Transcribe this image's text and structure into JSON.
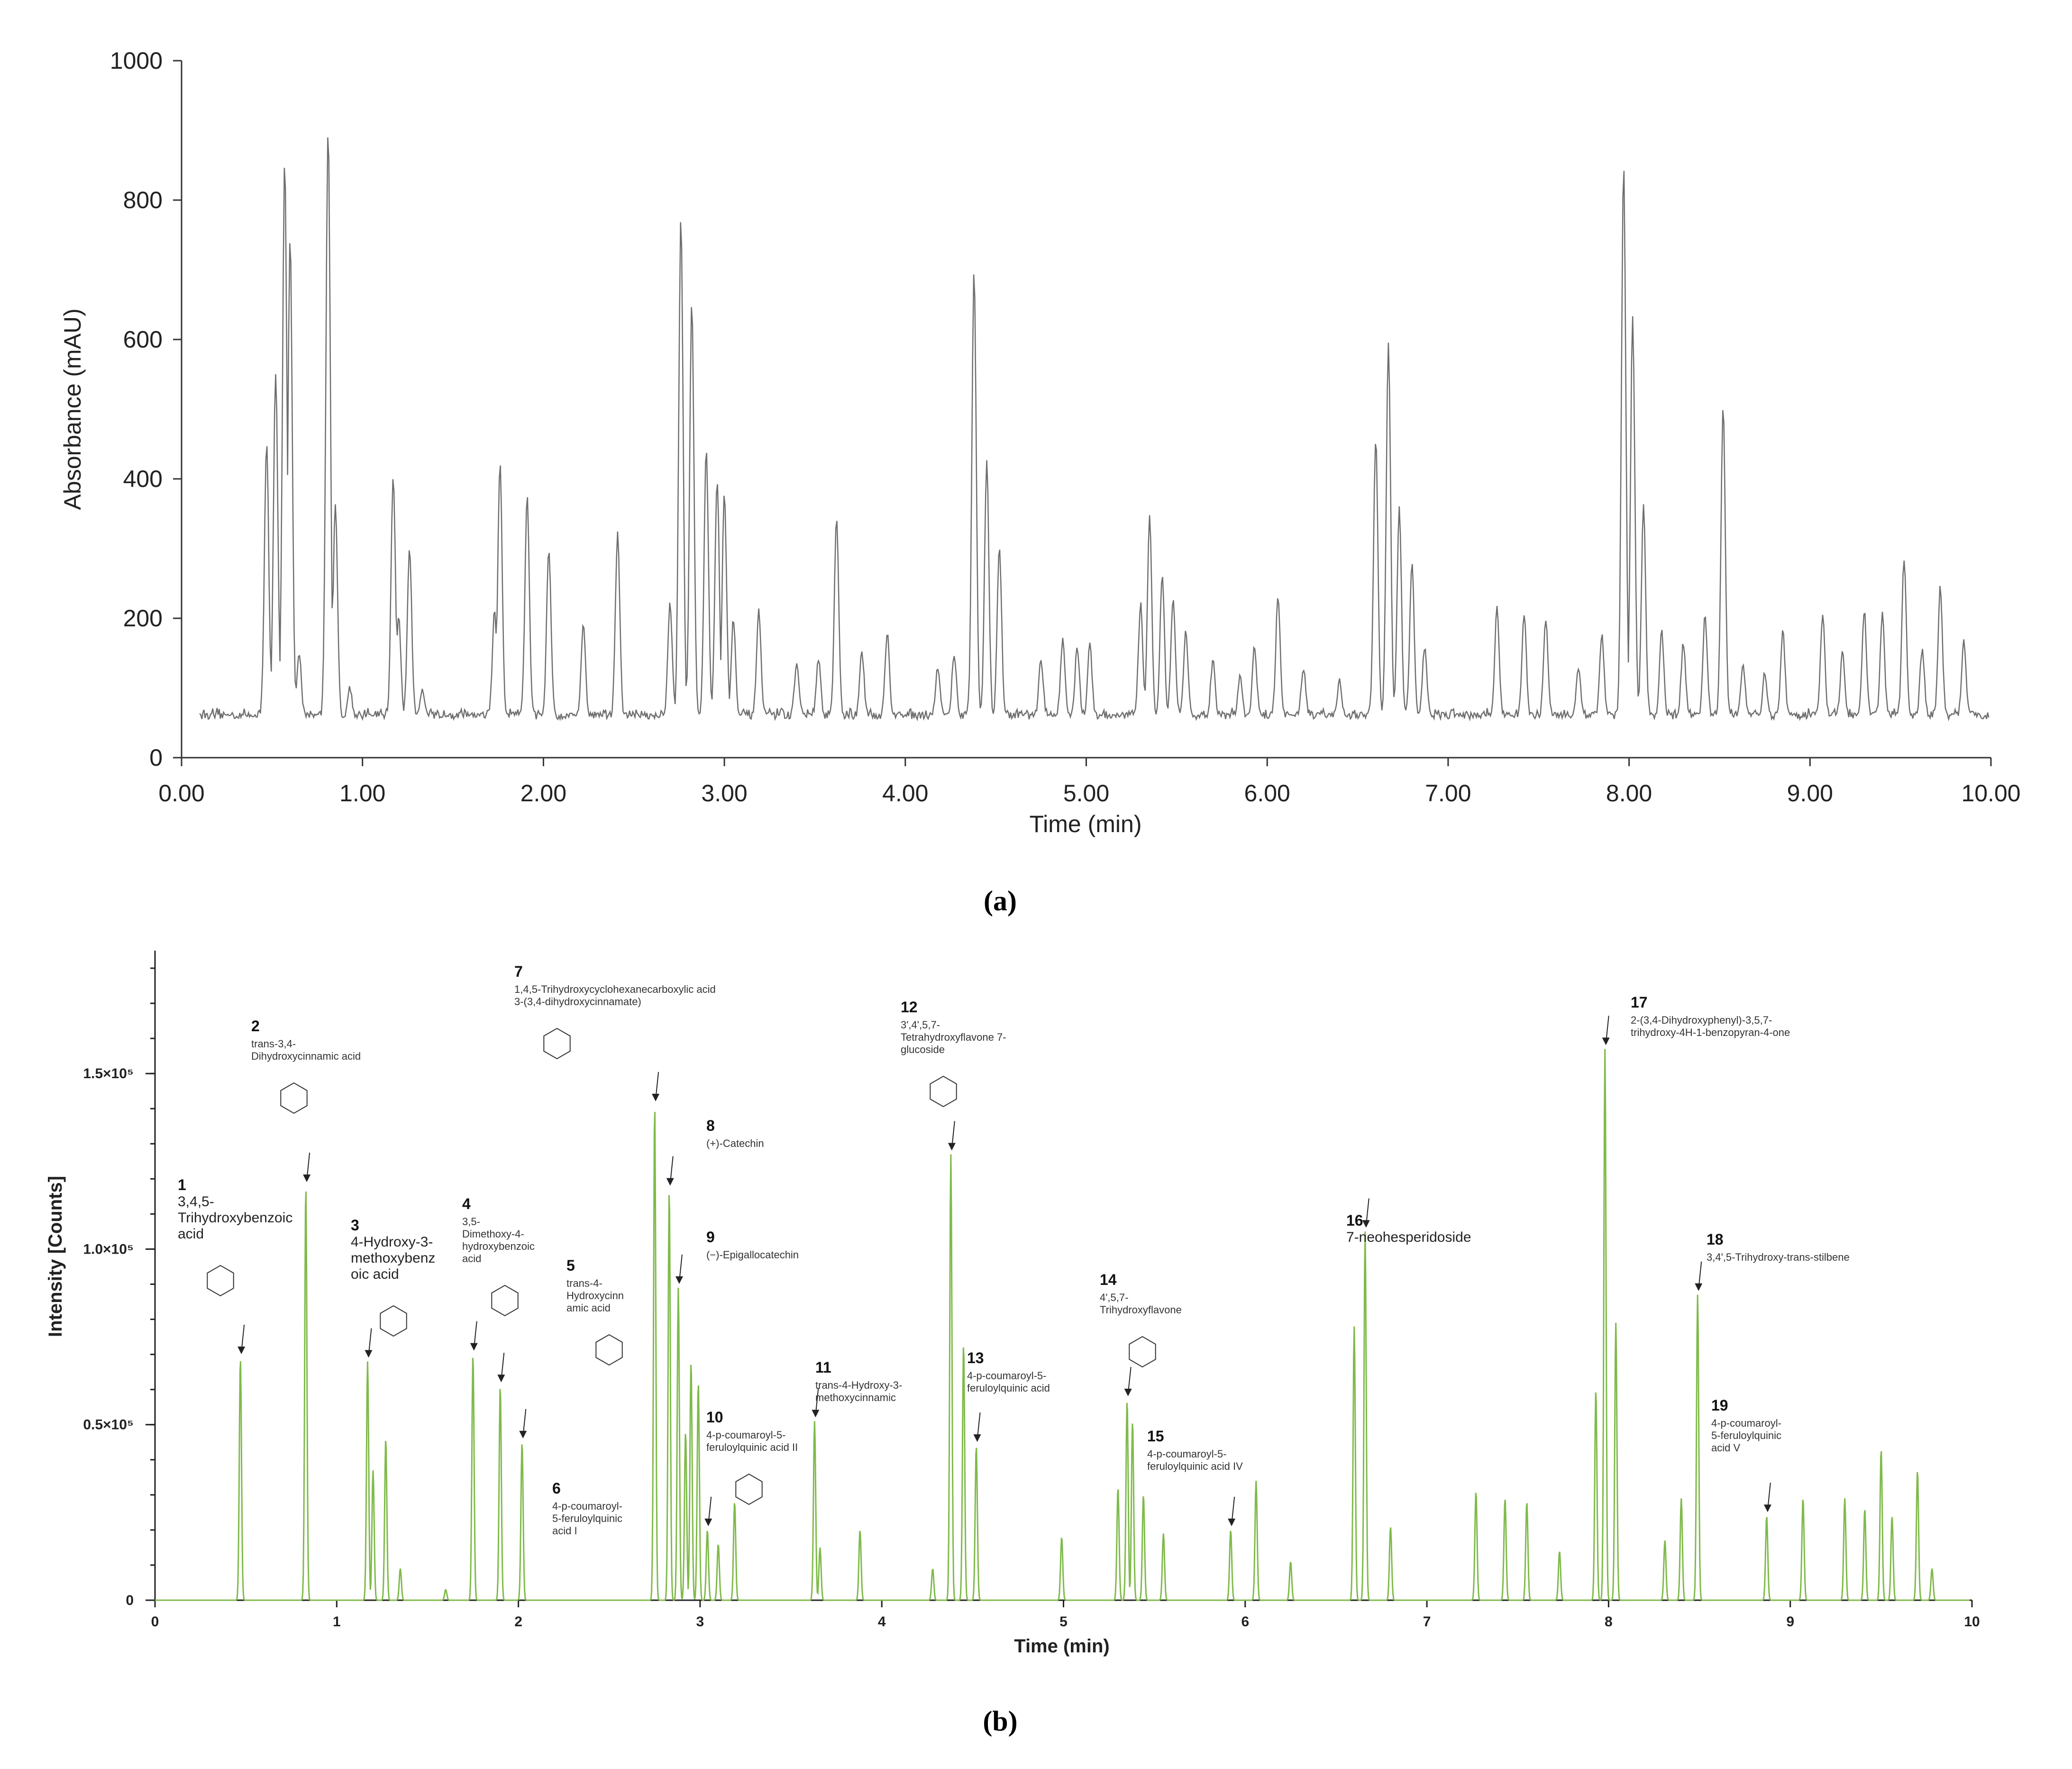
{
  "chart_data": [
    {
      "panel": "(a)",
      "type": "line",
      "xlabel": "Time (min)",
      "ylabel": "Absorbance (mAU)",
      "xlim": [
        0,
        10
      ],
      "ylim": [
        0,
        1000
      ],
      "xticks": [
        "0.00",
        "1.00",
        "2.00",
        "3.00",
        "4.00",
        "5.00",
        "6.00",
        "7.00",
        "8.00",
        "9.00",
        "10.00"
      ],
      "yticks": [
        "0",
        "200",
        "400",
        "600",
        "800",
        "1000"
      ],
      "line_color": "#6e6e6e",
      "baseline": 60,
      "peaks": [
        {
          "t": 0.47,
          "y": 450
        },
        {
          "t": 0.52,
          "y": 550
        },
        {
          "t": 0.57,
          "y": 855
        },
        {
          "t": 0.6,
          "y": 750
        },
        {
          "t": 0.65,
          "y": 150
        },
        {
          "t": 0.81,
          "y": 905
        },
        {
          "t": 0.85,
          "y": 360
        },
        {
          "t": 0.93,
          "y": 100
        },
        {
          "t": 1.17,
          "y": 405
        },
        {
          "t": 1.2,
          "y": 200
        },
        {
          "t": 1.26,
          "y": 300
        },
        {
          "t": 1.33,
          "y": 100
        },
        {
          "t": 1.73,
          "y": 210
        },
        {
          "t": 1.76,
          "y": 420
        },
        {
          "t": 1.91,
          "y": 375
        },
        {
          "t": 2.03,
          "y": 300
        },
        {
          "t": 2.22,
          "y": 190
        },
        {
          "t": 2.41,
          "y": 320
        },
        {
          "t": 2.7,
          "y": 220
        },
        {
          "t": 2.76,
          "y": 775
        },
        {
          "t": 2.82,
          "y": 650
        },
        {
          "t": 2.9,
          "y": 440
        },
        {
          "t": 2.96,
          "y": 400
        },
        {
          "t": 3.0,
          "y": 380
        },
        {
          "t": 3.05,
          "y": 200
        },
        {
          "t": 3.19,
          "y": 210
        },
        {
          "t": 3.4,
          "y": 140
        },
        {
          "t": 3.52,
          "y": 140
        },
        {
          "t": 3.62,
          "y": 340
        },
        {
          "t": 3.76,
          "y": 150
        },
        {
          "t": 3.9,
          "y": 180
        },
        {
          "t": 4.18,
          "y": 130
        },
        {
          "t": 4.27,
          "y": 150
        },
        {
          "t": 4.38,
          "y": 700
        },
        {
          "t": 4.45,
          "y": 425
        },
        {
          "t": 4.52,
          "y": 305
        },
        {
          "t": 4.75,
          "y": 140
        },
        {
          "t": 4.87,
          "y": 170
        },
        {
          "t": 4.95,
          "y": 160
        },
        {
          "t": 5.02,
          "y": 160
        },
        {
          "t": 5.3,
          "y": 220
        },
        {
          "t": 5.35,
          "y": 345
        },
        {
          "t": 5.42,
          "y": 260
        },
        {
          "t": 5.48,
          "y": 225
        },
        {
          "t": 5.55,
          "y": 180
        },
        {
          "t": 5.7,
          "y": 140
        },
        {
          "t": 5.85,
          "y": 115
        },
        {
          "t": 5.93,
          "y": 160
        },
        {
          "t": 6.06,
          "y": 235
        },
        {
          "t": 6.2,
          "y": 130
        },
        {
          "t": 6.4,
          "y": 110
        },
        {
          "t": 6.6,
          "y": 460
        },
        {
          "t": 6.67,
          "y": 595
        },
        {
          "t": 6.73,
          "y": 360
        },
        {
          "t": 6.8,
          "y": 280
        },
        {
          "t": 6.87,
          "y": 160
        },
        {
          "t": 7.27,
          "y": 215
        },
        {
          "t": 7.42,
          "y": 205
        },
        {
          "t": 7.54,
          "y": 200
        },
        {
          "t": 7.72,
          "y": 130
        },
        {
          "t": 7.85,
          "y": 175
        },
        {
          "t": 7.97,
          "y": 850
        },
        {
          "t": 8.02,
          "y": 630
        },
        {
          "t": 8.08,
          "y": 360
        },
        {
          "t": 8.18,
          "y": 180
        },
        {
          "t": 8.3,
          "y": 165
        },
        {
          "t": 8.42,
          "y": 205
        },
        {
          "t": 8.52,
          "y": 500
        },
        {
          "t": 8.63,
          "y": 130
        },
        {
          "t": 8.75,
          "y": 120
        },
        {
          "t": 8.85,
          "y": 180
        },
        {
          "t": 9.07,
          "y": 205
        },
        {
          "t": 9.18,
          "y": 150
        },
        {
          "t": 9.3,
          "y": 210
        },
        {
          "t": 9.4,
          "y": 205
        },
        {
          "t": 9.52,
          "y": 285
        },
        {
          "t": 9.62,
          "y": 155
        },
        {
          "t": 9.72,
          "y": 245
        },
        {
          "t": 9.85,
          "y": 165
        }
      ]
    },
    {
      "panel": "(b)",
      "type": "line",
      "xlabel": "Time (min)",
      "ylabel": "Intensity  [Counts]",
      "xlim": [
        0,
        10
      ],
      "ylim": [
        0,
        185000
      ],
      "xticks": [
        "0",
        "1",
        "2",
        "3",
        "4",
        "5",
        "6",
        "7",
        "8",
        "9",
        "10"
      ],
      "yticks": [
        {
          "value": 0,
          "label": "0"
        },
        {
          "value": 50000,
          "label": "0.5×10⁵"
        },
        {
          "value": 100000,
          "label": "1.0×10⁵"
        },
        {
          "value": 150000,
          "label": "1.5×10⁵"
        }
      ],
      "line_color": "#7fba4a",
      "peaks": [
        {
          "t": 0.47,
          "y": 69000
        },
        {
          "t": 0.83,
          "y": 118000
        },
        {
          "t": 1.17,
          "y": 68000
        },
        {
          "t": 1.2,
          "y": 37000
        },
        {
          "t": 1.27,
          "y": 46000
        },
        {
          "t": 1.35,
          "y": 9000
        },
        {
          "t": 1.6,
          "y": 3000
        },
        {
          "t": 1.75,
          "y": 70000
        },
        {
          "t": 1.9,
          "y": 61000
        },
        {
          "t": 2.02,
          "y": 45000
        },
        {
          "t": 2.75,
          "y": 141000
        },
        {
          "t": 2.83,
          "y": 117000
        },
        {
          "t": 2.88,
          "y": 89000
        },
        {
          "t": 2.92,
          "y": 48000
        },
        {
          "t": 2.95,
          "y": 68000
        },
        {
          "t": 2.99,
          "y": 62000
        },
        {
          "t": 3.04,
          "y": 20000
        },
        {
          "t": 3.1,
          "y": 16000
        },
        {
          "t": 3.19,
          "y": 28000
        },
        {
          "t": 3.63,
          "y": 51000
        },
        {
          "t": 3.66,
          "y": 15000
        },
        {
          "t": 3.88,
          "y": 20000
        },
        {
          "t": 4.28,
          "y": 9000
        },
        {
          "t": 4.38,
          "y": 127000
        },
        {
          "t": 4.45,
          "y": 73000
        },
        {
          "t": 4.52,
          "y": 44000
        },
        {
          "t": 4.99,
          "y": 18000
        },
        {
          "t": 5.3,
          "y": 32000
        },
        {
          "t": 5.35,
          "y": 57000
        },
        {
          "t": 5.38,
          "y": 51000
        },
        {
          "t": 5.44,
          "y": 30000
        },
        {
          "t": 5.55,
          "y": 19000
        },
        {
          "t": 5.92,
          "y": 20000
        },
        {
          "t": 6.06,
          "y": 34000
        },
        {
          "t": 6.25,
          "y": 11000
        },
        {
          "t": 6.6,
          "y": 78000
        },
        {
          "t": 6.66,
          "y": 105000
        },
        {
          "t": 6.8,
          "y": 21000
        },
        {
          "t": 7.27,
          "y": 31000
        },
        {
          "t": 7.43,
          "y": 29000
        },
        {
          "t": 7.55,
          "y": 28000
        },
        {
          "t": 7.73,
          "y": 14000
        },
        {
          "t": 7.93,
          "y": 60000
        },
        {
          "t": 7.98,
          "y": 157000
        },
        {
          "t": 8.04,
          "y": 79000
        },
        {
          "t": 8.31,
          "y": 17000
        },
        {
          "t": 8.4,
          "y": 29000
        },
        {
          "t": 8.49,
          "y": 87000
        },
        {
          "t": 8.87,
          "y": 24000
        },
        {
          "t": 9.07,
          "y": 29000
        },
        {
          "t": 9.3,
          "y": 29000
        },
        {
          "t": 9.41,
          "y": 26000
        },
        {
          "t": 9.5,
          "y": 43000
        },
        {
          "t": 9.56,
          "y": 24000
        },
        {
          "t": 9.7,
          "y": 37000
        },
        {
          "t": 9.78,
          "y": 9000
        }
      ],
      "annotations": [
        {
          "num": "1",
          "name": [
            "3,4,5-",
            "Trihydroxybenzoic",
            "acid"
          ],
          "t": 0.47
        },
        {
          "num": "2",
          "name": [
            "trans-3,4-",
            "Dihydroxycinnamic acid"
          ],
          "t": 0.83
        },
        {
          "num": "3",
          "name": [
            "4-Hydroxy-3-",
            "methoxybenz",
            "oic acid"
          ],
          "t": 1.17
        },
        {
          "num": "4",
          "name": [
            "3,5-",
            "Dimethoxy-4-",
            "hydroxybenzoic",
            "acid"
          ],
          "t": 1.75
        },
        {
          "num": "5",
          "name": [
            "trans-4-",
            "Hydroxycinn",
            "amic acid"
          ],
          "t": 1.9
        },
        {
          "num": "6",
          "name": [
            "4-p-coumaroyl-",
            "5-feruloylquinic",
            "acid I"
          ],
          "t": 2.02
        },
        {
          "num": "7",
          "name": [
            "1,4,5-Trihydroxycyclohexanecarboxylic acid",
            "3-(3,4-dihydroxycinnamate)"
          ],
          "t": 2.75
        },
        {
          "num": "8",
          "name": [
            "(+)-Catechin"
          ],
          "t": 2.83
        },
        {
          "num": "9",
          "name": [
            "(−)-Epigallocatechin"
          ],
          "t": 2.88
        },
        {
          "num": "10",
          "name": [
            "4-p-coumaroyl-5-",
            "feruloylquinic acid II"
          ],
          "t": 3.04
        },
        {
          "num": "11",
          "name": [
            "trans-4-Hydroxy-3-",
            "methoxycinnamic"
          ],
          "t": 3.63
        },
        {
          "num": "12",
          "name": [
            "3',4',5,7-",
            "Tetrahydroxyflavone 7-",
            "glucoside"
          ],
          "t": 4.38
        },
        {
          "num": "13",
          "name": [
            "4-p-coumaroyl-5-",
            "feruloylquinic acid"
          ],
          "t": 4.52
        },
        {
          "num": "14",
          "name": [
            "4',5,7-",
            "Trihydroxyflavone"
          ],
          "t": 5.35
        },
        {
          "num": "15",
          "name": [
            "4-p-coumaroyl-5-",
            "feruloylquinic acid IV"
          ],
          "t": 5.92
        },
        {
          "num": "16",
          "name": [
            "7-neohesperidoside"
          ],
          "t": 6.66
        },
        {
          "num": "17",
          "name": [
            "2-(3,4-Dihydroxyphenyl)-3,5,7-",
            "trihydroxy-4H-1-benzopyran-4-one"
          ],
          "t": 7.98
        },
        {
          "num": "18",
          "name": [
            "3,4',5-Trihydroxy-trans-stilbene"
          ],
          "t": 8.49
        },
        {
          "num": "19",
          "name": [
            "4-p-coumaroyl-",
            "5-feruloylquinic",
            "acid V"
          ],
          "t": 8.87
        }
      ]
    }
  ],
  "panel_labels": {
    "a": "(a)",
    "b": "(b)"
  }
}
